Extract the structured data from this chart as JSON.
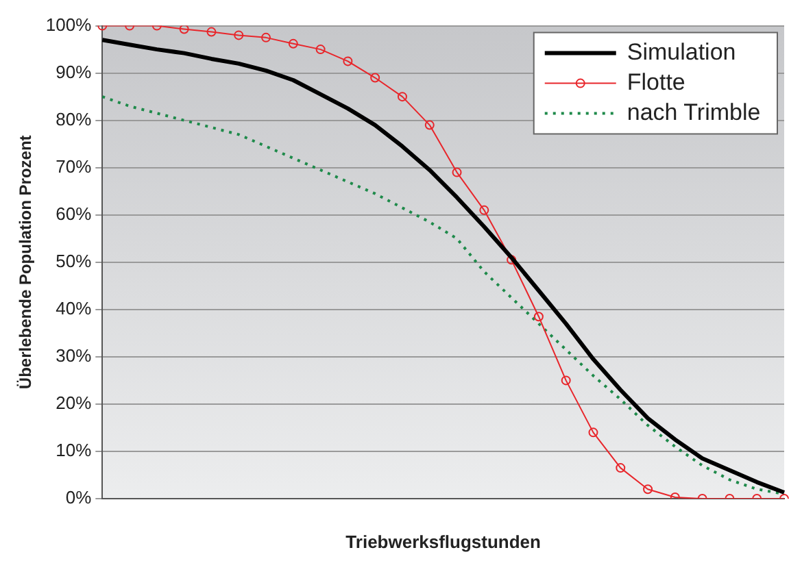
{
  "chart_data": {
    "type": "line",
    "xlabel": "Triebwerksflugstunden",
    "ylabel": "Überlebende Population Prozent",
    "categories": [
      null,
      null,
      null,
      null,
      null,
      null,
      null,
      null,
      null,
      null,
      null,
      null,
      null,
      null,
      null,
      null,
      null,
      null,
      null,
      null,
      null,
      null,
      null,
      null,
      null,
      null
    ],
    "series": [
      {
        "name": "Simulation",
        "color": "#000000",
        "marker": "none",
        "line_style": "solid",
        "values": [
          97,
          96,
          95,
          94.2,
          93,
          92,
          90.5,
          88.5,
          85.5,
          82.5,
          79,
          74.5,
          69.5,
          63.7,
          57.5,
          51,
          44,
          37,
          29.5,
          23,
          17,
          12.5,
          8.5,
          6,
          3.5,
          1.3
        ]
      },
      {
        "name": "Flotte",
        "color": "#e8262b",
        "marker": "circle",
        "line_style": "solid",
        "values": [
          100,
          100,
          100,
          99.3,
          98.7,
          98,
          97.5,
          96.2,
          95,
          92.5,
          89,
          85,
          79,
          69,
          61,
          50.5,
          38.5,
          25,
          14,
          6.5,
          2,
          0.3,
          0,
          0,
          0,
          0
        ]
      },
      {
        "name": "nach Trimble",
        "color": "#1e8a4a",
        "marker": "none",
        "line_style": "dotted",
        "values": [
          85,
          83,
          81.5,
          80,
          78.5,
          77,
          74.5,
          72,
          69.5,
          67,
          64.5,
          61.5,
          58.5,
          55,
          48,
          42.5,
          37,
          31.5,
          26,
          21,
          15.5,
          11,
          7,
          4,
          2,
          1
        ]
      }
    ],
    "ylim": [
      0,
      100
    ],
    "yticks": [
      {
        "value": 0,
        "label": "0%"
      },
      {
        "value": 10,
        "label": "10%"
      },
      {
        "value": 20,
        "label": "20%"
      },
      {
        "value": 30,
        "label": "30%"
      },
      {
        "value": 40,
        "label": "40%"
      },
      {
        "value": 50,
        "label": "50%"
      },
      {
        "value": 60,
        "label": "60%"
      },
      {
        "value": 70,
        "label": "70%"
      },
      {
        "value": 80,
        "label": "80%"
      },
      {
        "value": 90,
        "label": "90%"
      },
      {
        "value": 100,
        "label": "100%"
      }
    ],
    "grid": "y",
    "legend": "top right"
  }
}
